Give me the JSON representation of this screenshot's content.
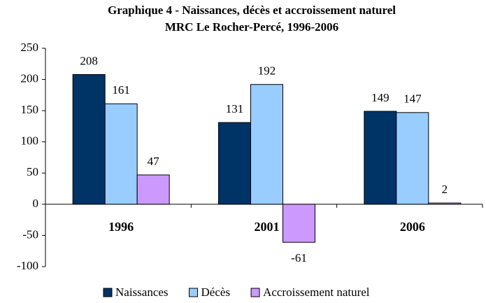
{
  "chart_data": {
    "type": "bar",
    "title": "Graphique 4 - Naissances, décès et accroissement naturel",
    "subtitle": "MRC Le Rocher-Percé, 1996-2006",
    "categories": [
      "1996",
      "2001",
      "2006"
    ],
    "series": [
      {
        "name": "Naissances",
        "color": "#003366",
        "values": [
          208,
          131,
          149
        ]
      },
      {
        "name": "Décès",
        "color": "#99ccff",
        "values": [
          161,
          192,
          147
        ]
      },
      {
        "name": "Accroissement naturel",
        "color": "#cc99ff",
        "values": [
          47,
          -61,
          2
        ]
      }
    ],
    "ylim": [
      -100,
      250
    ],
    "yticks": [
      -100,
      -50,
      0,
      50,
      100,
      150,
      200,
      250
    ],
    "legend": "bottom"
  }
}
